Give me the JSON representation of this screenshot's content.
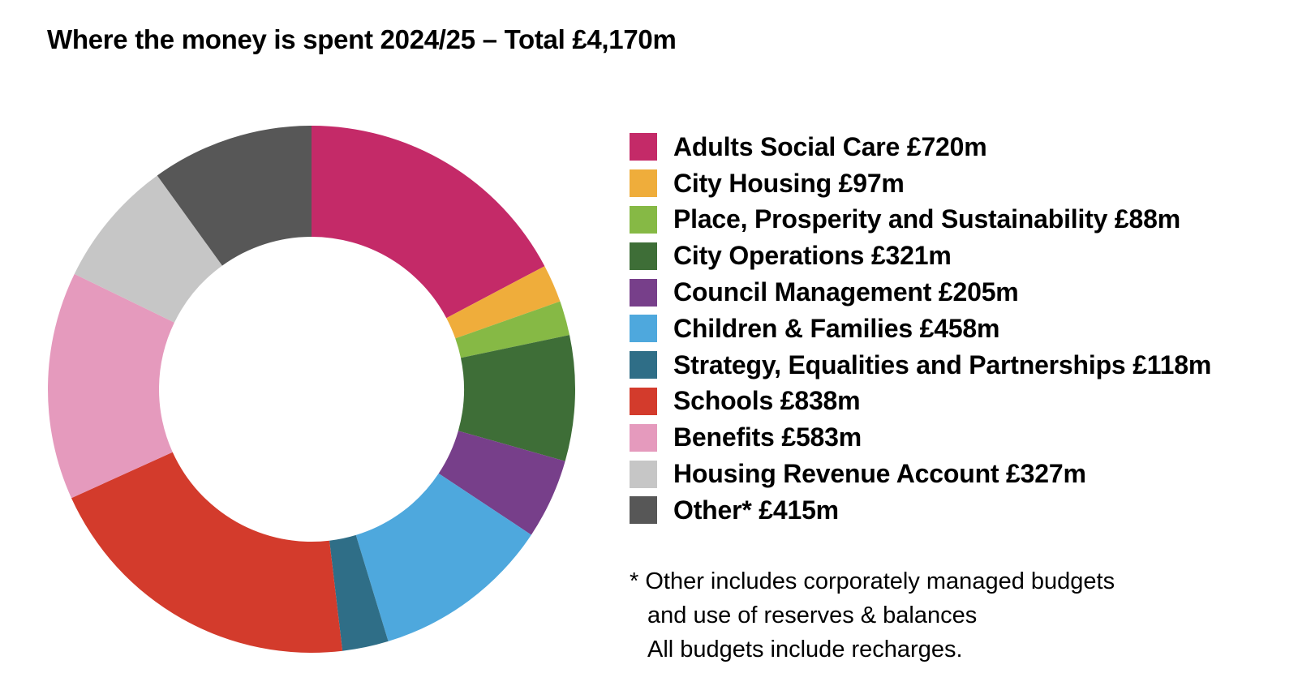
{
  "chart_data": {
    "type": "pie",
    "variant": "donut",
    "title": "Where the money is spent 2024/25 – Total £4,170m",
    "unit": "£m",
    "total": 4170,
    "slices": [
      {
        "name": "Adults Social Care",
        "value": 720,
        "label": "Adults Social Care £720m",
        "color": "#C42A68"
      },
      {
        "name": "City Housing",
        "value": 97,
        "label": "City Housing £97m",
        "color": "#EFAD3B"
      },
      {
        "name": "Place, Prosperity and Sustainability",
        "value": 88,
        "label": "Place, Prosperity and Sustainability £88m",
        "color": "#86B945"
      },
      {
        "name": "City Operations",
        "value": 321,
        "label": "City Operations £321m",
        "color": "#3E6E37"
      },
      {
        "name": "Council Management",
        "value": 205,
        "label": "Council Management £205m",
        "color": "#773F8A"
      },
      {
        "name": "Children & Families",
        "value": 458,
        "label": "Children & Families £458m",
        "color": "#4EA8DD"
      },
      {
        "name": "Strategy, Equalities and Partnerships",
        "value": 118,
        "label": "Strategy, Equalities and Partnerships £118m",
        "color": "#2F6E87"
      },
      {
        "name": "Schools",
        "value": 838,
        "label": "Schools £838m",
        "color": "#D33B2C"
      },
      {
        "name": "Benefits",
        "value": 583,
        "label": "Benefits £583m",
        "color": "#E59ABD"
      },
      {
        "name": "Housing Revenue Account",
        "value": 327,
        "label": "Housing Revenue Account £327m",
        "color": "#C6C6C6"
      },
      {
        "name": "Other*",
        "value": 415,
        "label": "Other* £415m",
        "color": "#575757"
      }
    ],
    "legend_position": "right",
    "start_angle": "top, clockwise"
  },
  "footnote": {
    "line1": "* Other includes corporately managed budgets",
    "line2": "and use of reserves & balances",
    "line3": "All budgets include recharges."
  }
}
